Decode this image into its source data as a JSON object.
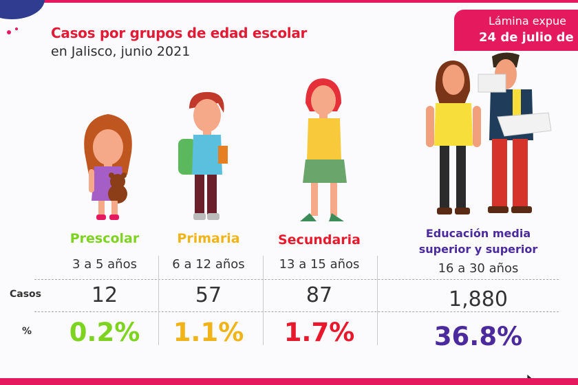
{
  "header": {
    "title": "Casos por grupos de edad escolar",
    "subtitle": "en Jalisco, junio 2021"
  },
  "badge": {
    "line1": "Lámina expue",
    "line2": "24 de julio de"
  },
  "table": {
    "row_labels": {
      "cases": "Casos",
      "percent": "%"
    },
    "groups": [
      {
        "name": "Prescolar",
        "ages": "3 a 5 años",
        "cases": "12",
        "percent": "0.2%",
        "color": "#7ed321"
      },
      {
        "name": "Primaria",
        "ages": "6 a 12 años",
        "cases": "57",
        "percent": "1.1%",
        "color": "#f0b419"
      },
      {
        "name": "Secundaria",
        "ages": "13 a 15 años",
        "cases": "87",
        "percent": "1.7%",
        "color": "#e8192c"
      },
      {
        "name_line1": "Educación media",
        "name_line2": "superior y superior",
        "ages": "16 a 30 años",
        "cases": "1,880",
        "percent": "36.8%",
        "color": "#4a2a9c"
      }
    ]
  },
  "icons": [
    "girl-with-teddy-icon",
    "boy-with-backpack-icon",
    "teen-girl-icon",
    "university-students-icon",
    "mouse-cursor-icon"
  ]
}
